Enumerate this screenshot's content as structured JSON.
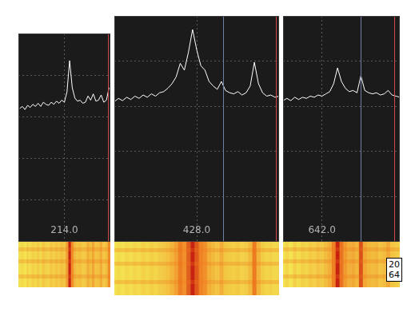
{
  "chart_data": [
    {
      "type": "line",
      "color": "#ffffff",
      "grid": true,
      "tick_labels": "x",
      "xlim": [
        212.25,
        215.75
      ],
      "xticks": [
        {
          "value": 214,
          "label": "214.0"
        }
      ],
      "ylim": [
        0,
        100
      ],
      "yticks": [
        20,
        40,
        60,
        80
      ],
      "x": [
        212.3,
        212.4,
        212.5,
        212.6,
        212.7,
        212.8,
        212.9,
        213.0,
        213.1,
        213.2,
        213.3,
        213.4,
        213.5,
        213.6,
        213.7,
        213.8,
        213.9,
        214.0,
        214.1,
        214.2,
        214.3,
        214.4,
        214.5,
        214.6,
        214.7,
        214.8,
        214.9,
        215.0,
        215.1,
        215.2,
        215.3,
        215.4,
        215.5,
        215.6,
        215.7
      ],
      "values": [
        64,
        65,
        63.5,
        65.5,
        64.5,
        66,
        65,
        66.5,
        65,
        67,
        66,
        65.5,
        67,
        66,
        67.5,
        66.5,
        68,
        67,
        72,
        87,
        74,
        69,
        67.5,
        68,
        66.5,
        67,
        70,
        68,
        71,
        67.5,
        68,
        70.5,
        67,
        68,
        74
      ],
      "vlines": [
        {
          "x": 215.65,
          "color": "#d04848"
        }
      ]
    },
    {
      "type": "line",
      "color": "#ffffff",
      "grid": true,
      "tick_labels": "x",
      "xlim": [
        424.0,
        432.0
      ],
      "xticks": [
        {
          "value": 428,
          "label": "428.0"
        }
      ],
      "ylim": [
        0,
        100
      ],
      "yticks": [
        20,
        40,
        60,
        80
      ],
      "x": [
        424.0,
        424.2,
        424.4,
        424.6,
        424.8,
        425.0,
        425.2,
        425.4,
        425.6,
        425.8,
        426.0,
        426.2,
        426.4,
        426.6,
        426.8,
        427.0,
        427.2,
        427.4,
        427.6,
        427.8,
        428.0,
        428.2,
        428.4,
        428.6,
        428.8,
        429.0,
        429.2,
        429.4,
        429.6,
        429.8,
        430.0,
        430.2,
        430.4,
        430.6,
        430.8,
        431.0,
        431.2,
        431.4,
        431.6,
        431.8,
        432.0
      ],
      "values": [
        62,
        63.5,
        62.5,
        64,
        63,
        64.5,
        63.5,
        65,
        64,
        65.5,
        64.5,
        66,
        66.5,
        68,
        70,
        73,
        79,
        76,
        84,
        94,
        85,
        78,
        76,
        71,
        69,
        67.5,
        71,
        67,
        66,
        65.5,
        66.5,
        65,
        66,
        69,
        79.5,
        70,
        66,
        64.5,
        65,
        64,
        64.5
      ],
      "vlines": [
        {
          "x": 429.3,
          "color": "#7080a0"
        },
        {
          "x": 431.85,
          "color": "#d04848"
        }
      ]
    },
    {
      "type": "line",
      "color": "#ffffff",
      "grid": true,
      "tick_labels": "x",
      "xlim": [
        640.0,
        646.0
      ],
      "xticks": [
        {
          "value": 642,
          "label": "642.0"
        }
      ],
      "ylim": [
        0,
        100
      ],
      "yticks": [
        20,
        40,
        60,
        80
      ],
      "x": [
        640.0,
        640.2,
        640.4,
        640.6,
        640.8,
        641.0,
        641.2,
        641.4,
        641.6,
        641.8,
        642.0,
        642.2,
        642.4,
        642.6,
        642.8,
        643.0,
        643.2,
        643.4,
        643.6,
        643.8,
        644.0,
        644.2,
        644.4,
        644.6,
        644.8,
        645.0,
        645.2,
        645.4,
        645.6,
        645.8,
        646.0
      ],
      "values": [
        62.5,
        63.5,
        62.5,
        64,
        63,
        64,
        63.5,
        64.5,
        64,
        65,
        64.5,
        65.5,
        66.5,
        70,
        77,
        71,
        68,
        66.5,
        67,
        66,
        73.5,
        67,
        66,
        65.5,
        66,
        65,
        65.5,
        67,
        65,
        64.5,
        64
      ],
      "vlines": [
        {
          "x": 644.0,
          "color": "#7080a0"
        },
        {
          "x": 645.7,
          "color": "#d04848"
        }
      ],
      "annotations": [
        "20",
        "64"
      ]
    }
  ]
}
